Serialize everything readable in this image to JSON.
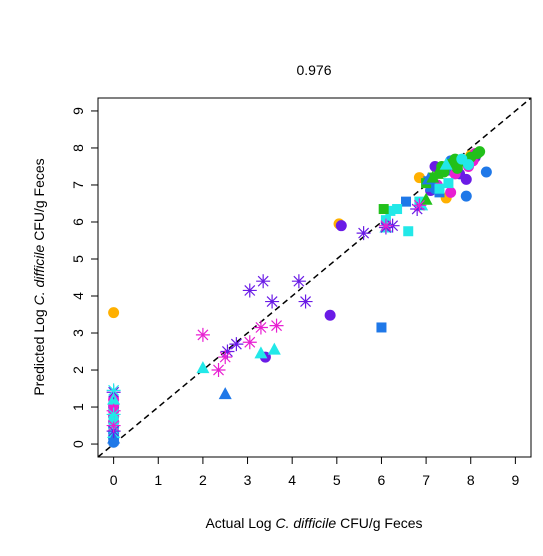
{
  "chart_data": {
    "type": "scatter",
    "title": "0.976",
    "xlabel": {
      "pre": "Actual Log ",
      "italic": "C. difficile",
      "post": " CFU/g Feces"
    },
    "ylabel": {
      "pre": "Predicted Log ",
      "italic": "C. difficile",
      "post": " CFU/g Feces"
    },
    "xlim": [
      -0.35,
      9.35
    ],
    "ylim": [
      -0.35,
      9.35
    ],
    "xticks": [
      0,
      1,
      2,
      3,
      4,
      5,
      6,
      7,
      8,
      9
    ],
    "yticks": [
      0,
      1,
      2,
      3,
      4,
      5,
      6,
      7,
      8,
      9
    ],
    "reference_line": {
      "style": "dashed",
      "slope": 1,
      "intercept": 0
    },
    "grid": false,
    "legend": "none",
    "colors": {
      "orange": "#ffb000",
      "blue": "#1f78e8",
      "violet": "#6a1be6",
      "magenta": "#e81fd2",
      "green": "#22c01a",
      "cyan": "#22e8e8"
    },
    "series": [
      {
        "marker": "circle",
        "color": "orange",
        "points": [
          [
            0,
            3.55
          ],
          [
            5.05,
            5.95
          ],
          [
            6.85,
            7.2
          ],
          [
            7.45,
            6.65
          ],
          [
            7.3,
            7.35
          ],
          [
            7.9,
            7.6
          ],
          [
            8.0,
            7.8
          ],
          [
            7.6,
            7.5
          ]
        ]
      },
      {
        "marker": "circle",
        "color": "violet",
        "points": [
          [
            3.4,
            2.35
          ],
          [
            4.85,
            3.48
          ],
          [
            5.1,
            5.9
          ],
          [
            7.1,
            6.85
          ],
          [
            7.5,
            7.4
          ],
          [
            7.9,
            7.15
          ],
          [
            8.1,
            7.75
          ],
          [
            7.2,
            7.5
          ],
          [
            7.75,
            7.3
          ]
        ]
      },
      {
        "marker": "circle",
        "color": "blue",
        "points": [
          [
            8.35,
            7.35
          ],
          [
            7.9,
            6.7
          ],
          [
            7.2,
            6.9
          ],
          [
            7.55,
            7.65
          ],
          [
            7.45,
            7.4
          ],
          [
            0,
            0.05
          ],
          [
            0,
            0.15
          ],
          [
            0,
            0.3
          ],
          [
            0,
            0.45
          ],
          [
            0,
            0.6
          ],
          [
            0,
            0.75
          ],
          [
            0,
            1.0
          ]
        ]
      },
      {
        "marker": "circle",
        "color": "magenta",
        "points": [
          [
            7.25,
            7.0
          ],
          [
            7.55,
            6.8
          ],
          [
            7.65,
            7.3
          ],
          [
            7.95,
            7.5
          ],
          [
            8.05,
            7.65
          ],
          [
            8.1,
            7.85
          ],
          [
            0,
            1.2
          ],
          [
            0,
            1.05
          ],
          [
            0,
            0.9
          ],
          [
            0,
            0.75
          ],
          [
            0,
            0.6
          ]
        ]
      },
      {
        "marker": "circle",
        "color": "green",
        "points": [
          [
            7.35,
            7.5
          ],
          [
            7.5,
            7.55
          ],
          [
            7.6,
            7.6
          ],
          [
            7.7,
            7.45
          ],
          [
            7.85,
            7.65
          ],
          [
            8.0,
            7.75
          ],
          [
            8.15,
            7.85
          ],
          [
            7.4,
            7.35
          ],
          [
            7.65,
            7.7
          ],
          [
            8.2,
            7.9
          ]
        ]
      },
      {
        "marker": "circle",
        "color": "cyan",
        "points": [
          [
            7.8,
            7.7
          ],
          [
            7.95,
            7.55
          ],
          [
            0,
            0.2
          ],
          [
            0,
            0.35
          ]
        ]
      },
      {
        "marker": "square",
        "color": "blue",
        "points": [
          [
            6.0,
            3.15
          ],
          [
            6.55,
            6.55
          ],
          [
            7.1,
            6.95
          ],
          [
            7.3,
            6.8
          ],
          [
            7.05,
            7.1
          ],
          [
            0,
            0.1
          ],
          [
            0,
            0.25
          ]
        ]
      },
      {
        "marker": "square",
        "color": "cyan",
        "points": [
          [
            6.1,
            6.05
          ],
          [
            6.2,
            6.3
          ],
          [
            6.35,
            6.35
          ],
          [
            6.6,
            5.75
          ],
          [
            6.85,
            6.55
          ],
          [
            7.3,
            6.9
          ],
          [
            7.5,
            7.05
          ],
          [
            0,
            0.45
          ],
          [
            0,
            0.7
          ]
        ]
      },
      {
        "marker": "square",
        "color": "green",
        "points": [
          [
            6.05,
            6.35
          ],
          [
            7.0,
            7.05
          ],
          [
            7.15,
            7.2
          ]
        ]
      },
      {
        "marker": "triangle",
        "color": "cyan",
        "points": [
          [
            2.0,
            2.05
          ],
          [
            3.3,
            2.45
          ],
          [
            3.6,
            2.55
          ],
          [
            6.1,
            5.85
          ],
          [
            6.9,
            6.45
          ],
          [
            7.45,
            7.55
          ],
          [
            0,
            0.3
          ],
          [
            0,
            1.2
          ]
        ]
      },
      {
        "marker": "triangle",
        "color": "blue",
        "points": [
          [
            2.5,
            1.35
          ],
          [
            7.05,
            7.15
          ],
          [
            0,
            0.15
          ]
        ]
      },
      {
        "marker": "triangle",
        "color": "green",
        "points": [
          [
            7.0,
            6.6
          ],
          [
            7.15,
            7.2
          ],
          [
            7.25,
            7.3
          ]
        ]
      },
      {
        "marker": "asterisk",
        "color": "violet",
        "points": [
          [
            2.55,
            2.5
          ],
          [
            2.75,
            2.7
          ],
          [
            3.05,
            4.15
          ],
          [
            3.35,
            4.4
          ],
          [
            3.55,
            3.85
          ],
          [
            4.15,
            4.4
          ],
          [
            4.3,
            3.85
          ],
          [
            5.6,
            5.7
          ],
          [
            6.1,
            5.85
          ],
          [
            6.25,
            5.9
          ],
          [
            6.8,
            6.35
          ],
          [
            0,
            1.4
          ],
          [
            0,
            0.35
          ]
        ]
      },
      {
        "marker": "asterisk",
        "color": "magenta",
        "points": [
          [
            2.0,
            2.95
          ],
          [
            2.35,
            2.0
          ],
          [
            2.5,
            2.35
          ],
          [
            3.05,
            2.75
          ],
          [
            3.3,
            3.15
          ],
          [
            3.65,
            3.2
          ],
          [
            6.1,
            5.9
          ],
          [
            6.85,
            6.45
          ],
          [
            0,
            0.5
          ],
          [
            0,
            0.9
          ]
        ]
      },
      {
        "marker": "asterisk",
        "color": "cyan",
        "points": [
          [
            0,
            1.45
          ],
          [
            0,
            0.8
          ]
        ]
      }
    ]
  }
}
